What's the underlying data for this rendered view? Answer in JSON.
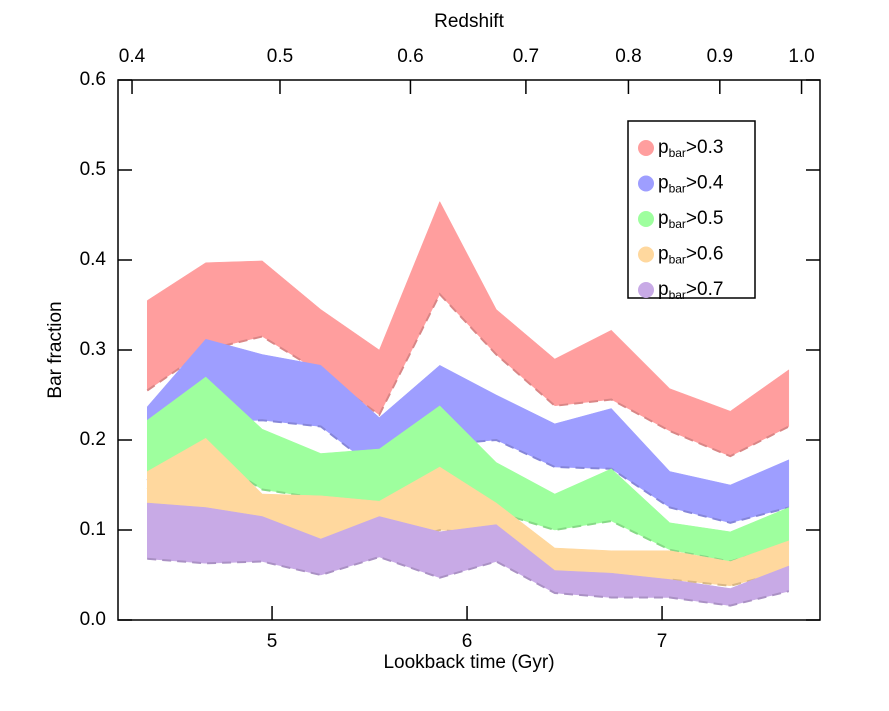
{
  "chart_data": {
    "type": "band",
    "xlabel": "Lookback time (Gyr)",
    "ylabel": "Bar fraction",
    "x2label": "Redshift",
    "x": [
      4.36,
      4.66,
      4.95,
      5.25,
      5.55,
      5.86,
      6.15,
      6.45,
      6.74,
      7.04,
      7.35,
      7.65
    ],
    "xlim": [
      4.21,
      7.81
    ],
    "xticks": [
      5,
      6,
      7
    ],
    "ylim": [
      0,
      0.6
    ],
    "yticks": [
      {
        "value": 0,
        "label": "0.0"
      },
      0.1,
      0.2,
      0.3,
      0.4,
      0.5,
      0.6
    ],
    "x2ticks": [
      0.4,
      0.5,
      0.6,
      0.7,
      0.8,
      0.9,
      {
        "value": 1,
        "label": "1.0"
      }
    ],
    "x2scale": "redshift",
    "legend": "upper right",
    "series": [
      {
        "name": "pbar>0.3",
        "color": "#ff9e9e",
        "upper": [
          0.355,
          0.397,
          0.399,
          0.345,
          0.3,
          0.465,
          0.345,
          0.29,
          0.322,
          0.257,
          0.232,
          0.278
        ],
        "lower": [
          0.255,
          0.3,
          0.315,
          0.275,
          0.228,
          0.362,
          0.295,
          0.238,
          0.245,
          0.21,
          0.182,
          0.215
        ]
      },
      {
        "name": "pbar>0.4",
        "color": "#9e9eff",
        "upper": [
          0.237,
          0.312,
          0.295,
          0.283,
          0.225,
          0.283,
          0.25,
          0.218,
          0.235,
          0.165,
          0.15,
          0.178
        ],
        "lower": [
          0.155,
          0.22,
          0.222,
          0.215,
          0.165,
          0.195,
          0.2,
          0.17,
          0.168,
          0.125,
          0.108,
          0.125
        ]
      },
      {
        "name": "pbar>0.5",
        "color": "#9eff9e",
        "upper": [
          0.222,
          0.27,
          0.212,
          0.185,
          0.19,
          0.238,
          0.175,
          0.14,
          0.168,
          0.108,
          0.098,
          0.125
        ],
        "lower": [
          0.145,
          0.185,
          0.145,
          0.135,
          0.128,
          0.158,
          0.12,
          0.1,
          0.11,
          0.078,
          0.065,
          0.085
        ]
      },
      {
        "name": "pbar>0.6",
        "color": "#ffd89e",
        "upper": [
          0.165,
          0.202,
          0.14,
          0.138,
          0.132,
          0.17,
          0.13,
          0.08,
          0.077,
          0.077,
          0.065,
          0.088
        ],
        "lower": [
          0.095,
          0.12,
          0.085,
          0.087,
          0.08,
          0.1,
          0.095,
          0.05,
          0.038,
          0.045,
          0.038,
          0.055
        ]
      },
      {
        "name": "pbar>0.7",
        "color": "#c8aae6",
        "upper": [
          0.13,
          0.125,
          0.115,
          0.09,
          0.115,
          0.098,
          0.106,
          0.055,
          0.052,
          0.045,
          0.035,
          0.06
        ],
        "lower": [
          0.068,
          0.063,
          0.065,
          0.05,
          0.07,
          0.047,
          0.065,
          0.03,
          0.025,
          0.025,
          0.016,
          0.032
        ]
      }
    ]
  }
}
